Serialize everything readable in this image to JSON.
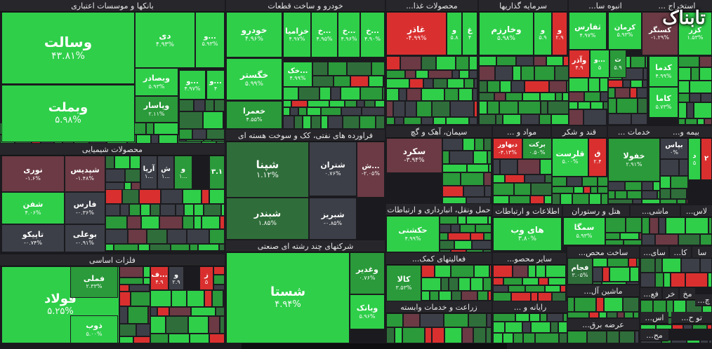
{
  "colors": {
    "bg": "#1b1b1f",
    "header": "#26262b",
    "strong_pos": "#2fcf4a",
    "mid_pos": "#2a9a3a",
    "weak_pos": "#2f6e3a",
    "neutral": "#3c3f47",
    "weak_neg": "#6b3a44",
    "strong_neg": "#d9302f"
  },
  "logo_text": "تابناک",
  "chart_data": {
    "type": "heatmap",
    "title": "",
    "sectors": [
      {
        "name": "بانکها و موسسات اعتباری",
        "tiles": [
          {
            "name": "وسالت",
            "pct": "۴۳.۸۱%"
          },
          {
            "name": "وبملت",
            "pct": "۵.۹۸%"
          },
          {
            "name": "دی",
            "pct": "۴.۹۳%"
          },
          {
            "name": "و...",
            "pct": "۵.۹۳%"
          },
          {
            "name": "وبصادر",
            "pct": "۵.۹۳%"
          },
          {
            "name": "وپاسار",
            "pct": "۲.۱۱%"
          },
          {
            "name": "و...",
            "pct": "۴.۹۷%"
          },
          {
            "name": "و...",
            "pct": "۴"
          }
        ]
      },
      {
        "name": "خودرو و ساخت قطعات",
        "tiles": [
          {
            "name": "خودرو",
            "pct": "۴.۹۶%"
          },
          {
            "name": "خزامیا",
            "pct": "۴.۹۷%"
          },
          {
            "name": "خ...",
            "pct": "۴.۹۵%"
          },
          {
            "name": "خ...",
            "pct": "۴.۹۶%"
          },
          {
            "name": "خ...",
            "pct": "۴.۹۰%"
          },
          {
            "name": "خگستر",
            "pct": "۵.۹۹%"
          },
          {
            "name": "خک...",
            "pct": "۴.۹۹%"
          },
          {
            "name": "خعمرا",
            "pct": "۴.۵۵%"
          }
        ]
      },
      {
        "name": "محصولات غذا...",
        "tiles": [
          {
            "name": "غاذر",
            "pct": "-۴.۹۹%"
          },
          {
            "name": "و",
            "pct": "۵.۸"
          },
          {
            "name": "غ",
            "pct": "۴"
          }
        ]
      },
      {
        "name": "سرمایه گذاریها",
        "tiles": [
          {
            "name": "وخارزم",
            "pct": "۵.۹۸%"
          },
          {
            "name": "و",
            "pct": "۵.۹"
          },
          {
            "name": "و",
            "pct": "۲.۹"
          }
        ]
      },
      {
        "name": "انبوه سا...",
        "tiles": [
          {
            "name": "ثفارس",
            "pct": "۴.۹۷%"
          },
          {
            "name": "وآذر",
            "pct": "۴.۹"
          },
          {
            "name": "و...",
            "pct": "۵"
          },
          {
            "name": "ث",
            "pct": "۵.۹"
          }
        ]
      },
      {
        "name": "استخراج ...",
        "tiles": [
          {
            "name": "کرمان",
            "pct": "۵.۹۳%"
          },
          {
            "name": "کسنگر",
            "pct": "-۱.۲۹%"
          },
          {
            "name": "کزر",
            "pct": "۱.۵۳%"
          },
          {
            "name": "کدما",
            "pct": "۴.۹۹%"
          },
          {
            "name": "کاما",
            "pct": "۵.۷۳%"
          }
        ]
      },
      {
        "name": "محصولات شیمیایی",
        "tiles": [
          {
            "name": "نوری",
            "pct": "-۱.۶%"
          },
          {
            "name": "شپدیس",
            "pct": "-۱.۴۸%"
          },
          {
            "name": "آریا",
            "pct": "۱..."
          },
          {
            "name": "ش",
            "pct": "۱..."
          },
          {
            "name": "و",
            "pct": "۱..."
          },
          {
            "name": "۳.۱",
            "pct": ""
          },
          {
            "name": "شفن",
            "pct": "۴.۰۶%"
          },
          {
            "name": "فارس",
            "pct": "-۰.۳۶%"
          },
          {
            "name": "تاپیکو",
            "pct": "-۰.۷۴%"
          },
          {
            "name": "بوعلی",
            "pct": "-۰.۹۱%"
          }
        ]
      },
      {
        "name": "فراورده های نفتی، کک و سوخت هسته ای",
        "tiles": [
          {
            "name": "شپنا",
            "pct": "۱.۱۲%"
          },
          {
            "name": "شتران",
            "pct": "۰.۷۶%"
          },
          {
            "name": "ش...",
            "pct": "-۲.۰۵%"
          },
          {
            "name": "شبندر",
            "pct": "۱.۸۵%"
          },
          {
            "name": "شبریز",
            "pct": "-۰.۸۵%"
          }
        ]
      },
      {
        "name": "سیمان، آهک و گچ",
        "tiles": [
          {
            "name": "سکرد",
            "pct": "-۳.۹۴%"
          }
        ]
      },
      {
        "name": "مواد و ...",
        "tiles": [
          {
            "name": "دبهاور",
            "pct": "-۴.۱۳%"
          },
          {
            "name": "برکت",
            "pct": "۰.۵۰%"
          }
        ]
      },
      {
        "name": "قند و شکر",
        "tiles": [
          {
            "name": "قلرست",
            "pct": "۵.۰۰%"
          },
          {
            "name": "ق",
            "pct": "۲.۴"
          }
        ]
      },
      {
        "name": "خدمات ...",
        "tiles": [
          {
            "name": "خفولا",
            "pct": "۲.۹۱%"
          }
        ]
      },
      {
        "name": "بیمه و...",
        "tiles": [
          {
            "name": "بپاس",
            "pct": "۰%"
          },
          {
            "name": "د",
            "pct": "۵"
          },
          {
            "name": "۲",
            "pct": ""
          }
        ]
      },
      {
        "name": "حمل ونقل، انبارداری و ارتباطات",
        "tiles": [
          {
            "name": "حکشتی",
            "pct": "۴.۹۹%"
          }
        ]
      },
      {
        "name": "اطلاعات و ارتباطات",
        "tiles": [
          {
            "name": "های وب",
            "pct": "۳.۸۰%"
          }
        ]
      },
      {
        "name": "هتل و رستوران",
        "tiles": [
          {
            "name": "سمگا",
            "pct": "۵.۹۳%"
          }
        ]
      },
      {
        "name": "ماشی...",
        "tiles": []
      },
      {
        "name": "لاس...",
        "tiles": []
      },
      {
        "name": "فلزات اساسی",
        "tiles": [
          {
            "name": "فولاد",
            "pct": "۵.۲۵%"
          },
          {
            "name": "فملی",
            "pct": "۲.۳۳%"
          },
          {
            "name": "ذوب",
            "pct": "۵.۰۰%"
          },
          {
            "name": "ف...",
            "pct": "۴.۹"
          },
          {
            "name": "و",
            "pct": "۲.۹"
          },
          {
            "name": "ز",
            "pct": "۵"
          }
        ]
      },
      {
        "name": "شرکتهای چند رشته ای صنعتی",
        "tiles": [
          {
            "name": "شستا",
            "pct": "۴.۹۴%"
          },
          {
            "name": "وغدیر",
            "pct": "۰.۷۶%"
          },
          {
            "name": "وبانک",
            "pct": "۵.۹۶%"
          }
        ]
      },
      {
        "name": "فعالیتهای کمک...",
        "tiles": [
          {
            "name": "کالا",
            "pct": "۳.۵۳%"
          }
        ]
      },
      {
        "name": "سایر محصو...",
        "tiles": []
      },
      {
        "name": "ساخت محص...",
        "tiles": [
          {
            "name": "فجام",
            "pct": "۳.۰۵%"
          }
        ]
      },
      {
        "name": "زراعت و خدمات وابسته",
        "tiles": []
      },
      {
        "name": "رایانه و ...",
        "tiles": []
      },
      {
        "name": "ماشین آل...",
        "tiles": []
      },
      {
        "name": "عرضه برق...",
        "tiles": []
      },
      {
        "name": "سای...",
        "tiles": []
      },
      {
        "name": "کا...",
        "tiles": []
      },
      {
        "name": "سا",
        "tiles": []
      },
      {
        "name": "فع...",
        "tiles": []
      },
      {
        "name": "خر",
        "tiles": []
      },
      {
        "name": "مخ",
        "tiles": []
      },
      {
        "name": "اس...",
        "tiles": []
      },
      {
        "name": "چ...",
        "tiles": []
      },
      {
        "name": "تو ح...",
        "tiles": []
      },
      {
        "name": "مح...",
        "tiles": []
      }
    ]
  }
}
